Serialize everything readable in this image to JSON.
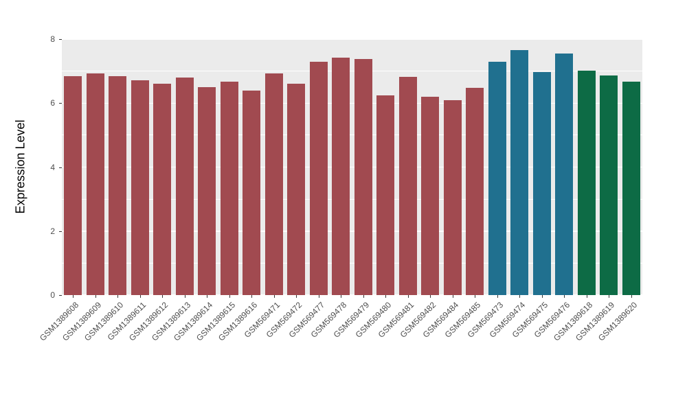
{
  "chart_data": {
    "type": "bar",
    "title": "",
    "xlabel": "",
    "ylabel": "Expression Level",
    "ylim": [
      0,
      8
    ],
    "yticks": [
      0,
      2,
      4,
      6,
      8
    ],
    "yticks_minor": [
      1,
      3,
      5,
      7
    ],
    "grid": "on",
    "legend_position": "none",
    "plot_background": "#EBEBEB",
    "gridline_color": "#FFFFFF",
    "axis_text_color": "#4D4D4D",
    "categories": [
      "GSM1389608",
      "GSM1389609",
      "GSM1389610",
      "GSM1389611",
      "GSM1389612",
      "GSM1389613",
      "GSM1389614",
      "GSM1389615",
      "GSM1389616",
      "GSM569471",
      "GSM569472",
      "GSM569477",
      "GSM569478",
      "GSM569479",
      "GSM569480",
      "GSM569481",
      "GSM569482",
      "GSM569484",
      "GSM569485",
      "GSM569473",
      "GSM569474",
      "GSM569475",
      "GSM569476",
      "GSM1389618",
      "GSM1389619",
      "GSM1389620"
    ],
    "values": [
      6.85,
      6.92,
      6.84,
      6.71,
      6.6,
      6.8,
      6.5,
      6.67,
      6.4,
      6.92,
      6.6,
      7.3,
      7.42,
      7.37,
      6.25,
      6.83,
      6.2,
      6.1,
      6.48,
      7.3,
      7.65,
      6.98,
      7.55,
      7.02,
      6.86,
      6.67
    ],
    "groups": [
      "red",
      "red",
      "red",
      "red",
      "red",
      "red",
      "red",
      "red",
      "red",
      "red",
      "red",
      "red",
      "red",
      "red",
      "red",
      "red",
      "red",
      "red",
      "red",
      "blue",
      "blue",
      "blue",
      "blue",
      "green",
      "green",
      "green"
    ],
    "group_colors": {
      "red": "#A14A50",
      "blue": "#20708F",
      "green": "#0D6B45"
    }
  }
}
